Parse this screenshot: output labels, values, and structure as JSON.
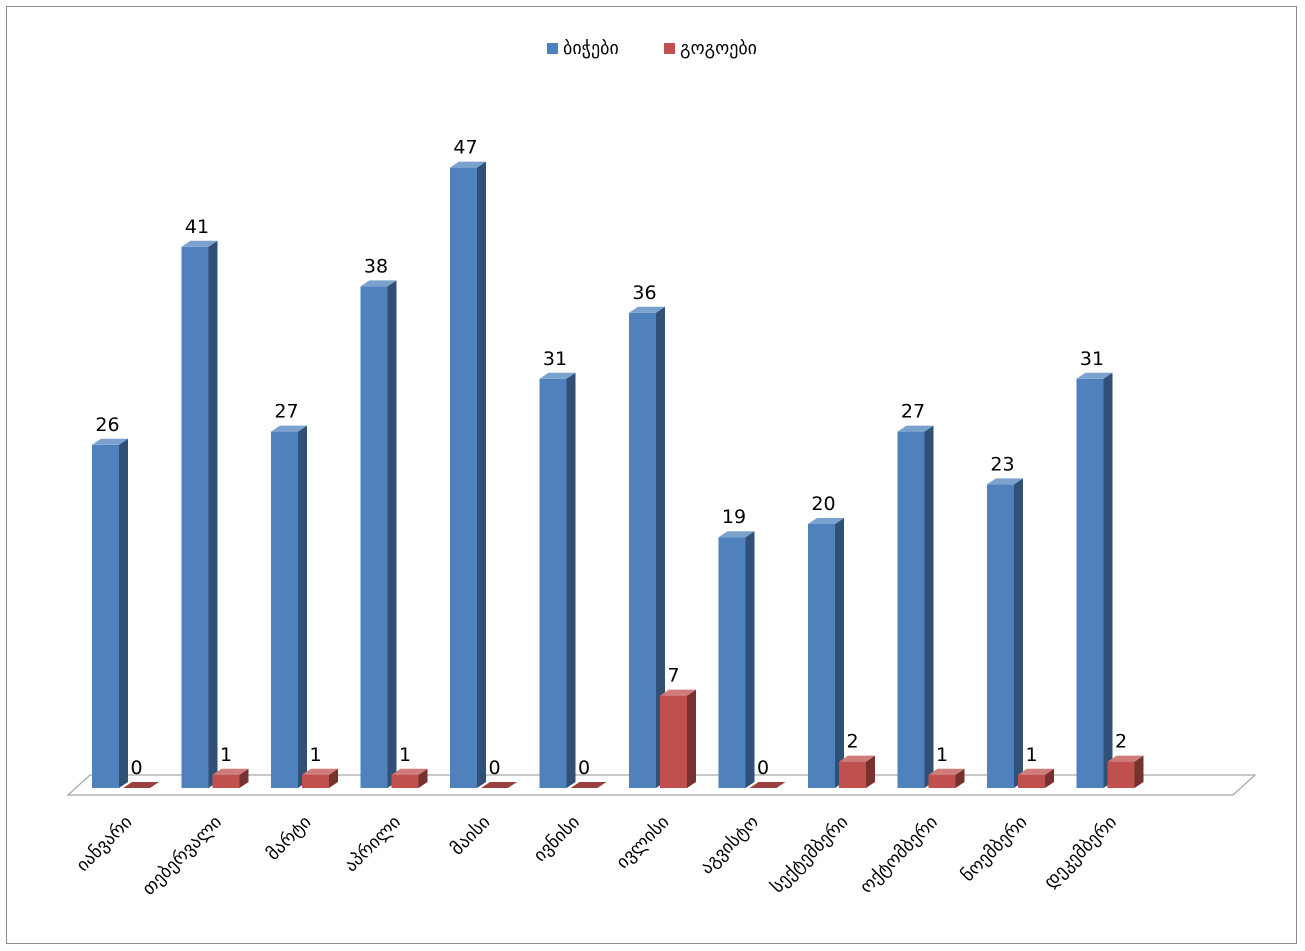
{
  "chart_data": {
    "type": "bar",
    "categories": [
      "იანვარი",
      "თებერვალი",
      "მარტი",
      "აპრილი",
      "მაისი",
      "ივნისი",
      "ივლისი",
      "აგვისტო",
      "სექტემბერი",
      "ოქტომბერი",
      "ნოემბერი",
      "დეკემბერი"
    ],
    "series": [
      {
        "name": "ბიჭები",
        "values": [
          26,
          41,
          27,
          38,
          47,
          31,
          36,
          19,
          20,
          27,
          23,
          31
        ],
        "color": "#4f81bd"
      },
      {
        "name": "გოგოები",
        "values": [
          0,
          1,
          1,
          1,
          0,
          0,
          7,
          0,
          2,
          1,
          1,
          2
        ],
        "color": "#c0504d"
      }
    ],
    "title": "",
    "xlabel": "",
    "ylabel": "",
    "ylim": [
      0,
      50
    ],
    "grid": false,
    "legend": "top",
    "data_labels": true,
    "style": "3d-column"
  }
}
